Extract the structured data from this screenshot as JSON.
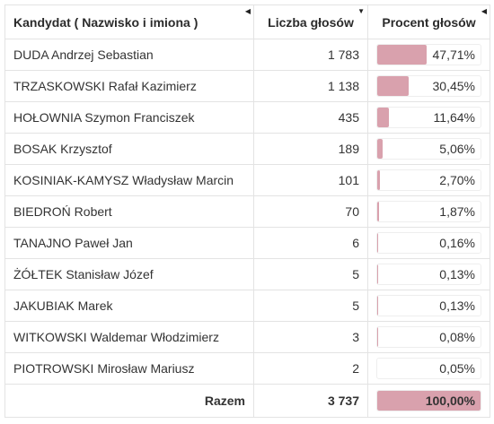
{
  "table": {
    "headers": {
      "candidate": "Kandydat ( Nazwisko i imiona )",
      "votes": "Liczba głosów",
      "percent": "Procent głosów"
    },
    "sort_icons": {
      "candidate": "◀",
      "votes": "▼",
      "percent": "◀"
    },
    "rows": [
      {
        "name": "DUDA Andrzej Sebastian",
        "votes": "1 783",
        "percent": "47,71%",
        "share": 0.4771
      },
      {
        "name": "TRZASKOWSKI Rafał Kazimierz",
        "votes": "1 138",
        "percent": "30,45%",
        "share": 0.3045
      },
      {
        "name": "HOŁOWNIA Szymon Franciszek",
        "votes": "435",
        "percent": "11,64%",
        "share": 0.1164
      },
      {
        "name": "BOSAK Krzysztof",
        "votes": "189",
        "percent": "5,06%",
        "share": 0.0506
      },
      {
        "name": "KOSINIAK-KAMYSZ Władysław Marcin",
        "votes": "101",
        "percent": "2,70%",
        "share": 0.027
      },
      {
        "name": "BIEDROŃ Robert",
        "votes": "70",
        "percent": "1,87%",
        "share": 0.0187
      },
      {
        "name": "TANAJNO Paweł Jan",
        "votes": "6",
        "percent": "0,16%",
        "share": 0.0016
      },
      {
        "name": "ŻÓŁTEK Stanisław Józef",
        "votes": "5",
        "percent": "0,13%",
        "share": 0.0013
      },
      {
        "name": "JAKUBIAK Marek",
        "votes": "5",
        "percent": "0,13%",
        "share": 0.0013
      },
      {
        "name": "WITKOWSKI Waldemar Włodzimierz",
        "votes": "3",
        "percent": "0,08%",
        "share": 0.0008
      },
      {
        "name": "PIOTROWSKI Mirosław Mariusz",
        "votes": "2",
        "percent": "0,05%",
        "share": 0.0005
      }
    ],
    "total": {
      "label": "Razem",
      "votes": "3 737",
      "percent": "100,00%",
      "share": 1.0
    }
  },
  "colors": {
    "bar": "#d9a1ad",
    "border": "#e3e3e3"
  }
}
